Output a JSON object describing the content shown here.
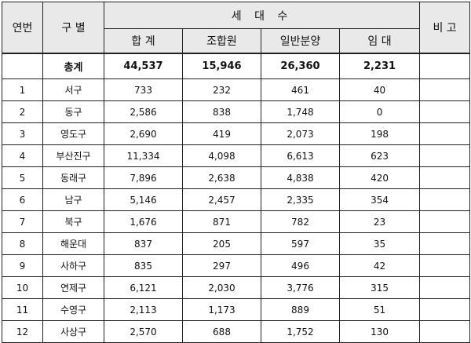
{
  "header": {
    "no": "연번",
    "district": "구 별",
    "households": "세 대 수",
    "remark": "비 고",
    "sub": [
      "합 계",
      "조합원",
      "일반분양",
      "임 대"
    ]
  },
  "total": {
    "label": "총계",
    "sum": "44,537",
    "union": "15,946",
    "general": "26,360",
    "rental": "2,231"
  },
  "rows": [
    {
      "no": "1",
      "district": "서구",
      "sum": "733",
      "union": "232",
      "general": "461",
      "rental": "40",
      "remark": ""
    },
    {
      "no": "2",
      "district": "동구",
      "sum": "2,586",
      "union": "838",
      "general": "1,748",
      "rental": "0",
      "remark": ""
    },
    {
      "no": "3",
      "district": "영도구",
      "sum": "2,690",
      "union": "419",
      "general": "2,073",
      "rental": "198",
      "remark": ""
    },
    {
      "no": "4",
      "district": "부산진구",
      "sum": "11,334",
      "union": "4,098",
      "general": "6,613",
      "rental": "623",
      "remark": ""
    },
    {
      "no": "5",
      "district": "동래구",
      "sum": "7,896",
      "union": "2,638",
      "general": "4,838",
      "rental": "420",
      "remark": ""
    },
    {
      "no": "6",
      "district": "남구",
      "sum": "5,146",
      "union": "2,457",
      "general": "2,335",
      "rental": "354",
      "remark": ""
    },
    {
      "no": "7",
      "district": "북구",
      "sum": "1,676",
      "union": "871",
      "general": "782",
      "rental": "23",
      "remark": ""
    },
    {
      "no": "8",
      "district": "해운대",
      "sum": "837",
      "union": "205",
      "general": "597",
      "rental": "35",
      "remark": ""
    },
    {
      "no": "9",
      "district": "사하구",
      "sum": "835",
      "union": "297",
      "general": "496",
      "rental": "42",
      "remark": ""
    },
    {
      "no": "10",
      "district": "연제구",
      "sum": "6,121",
      "union": "2,030",
      "general": "3,776",
      "rental": "315",
      "remark": ""
    },
    {
      "no": "11",
      "district": "수영구",
      "sum": "2,113",
      "union": "1,173",
      "general": "889",
      "rental": "51",
      "remark": ""
    },
    {
      "no": "12",
      "district": "사상구",
      "sum": "2,570",
      "union": "688",
      "general": "1,752",
      "rental": "130",
      "remark": ""
    }
  ]
}
